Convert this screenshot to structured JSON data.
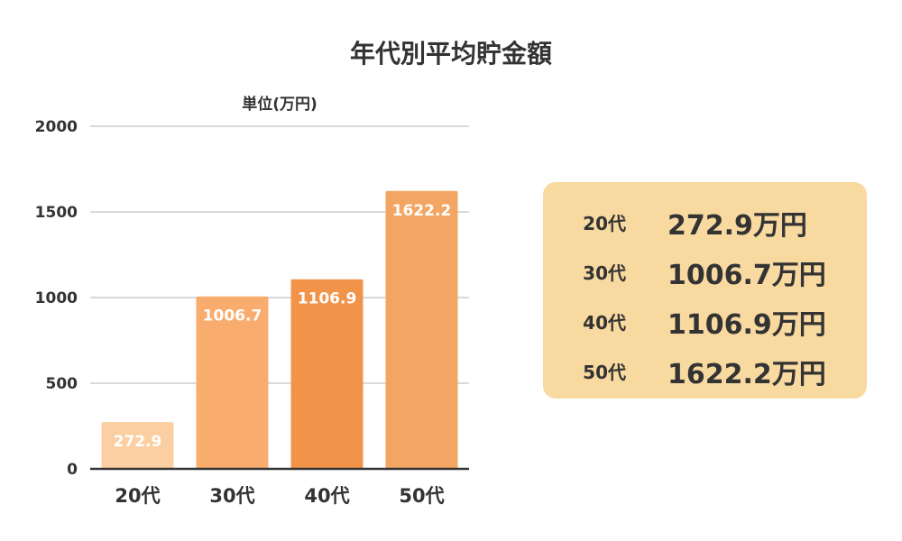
{
  "chart_data": {
    "type": "bar",
    "title": "年代別平均貯金額",
    "unit_label": "単位(万円)",
    "categories": [
      "20代",
      "30代",
      "40代",
      "50代"
    ],
    "values": [
      272.9,
      1006.7,
      1106.9,
      1622.2
    ],
    "data_labels": [
      "272.9",
      "1006.7",
      "1106.9",
      "1622.2"
    ],
    "ylim": [
      0,
      2000
    ],
    "y_ticks": [
      "0",
      "500",
      "1000",
      "1500",
      "2000"
    ],
    "grid": true,
    "bar_colors": [
      "#fbcfa2",
      "#f8ad6f",
      "#f1944a",
      "#f3a663"
    ],
    "grid_color": "#d9d9d9",
    "axis_color": "#333333"
  },
  "summary": {
    "background": "#f8d9a0",
    "rows": [
      {
        "age": "20代",
        "amount": "272.9万円"
      },
      {
        "age": "30代",
        "amount": "1006.7万円"
      },
      {
        "age": "40代",
        "amount": "1106.9万円"
      },
      {
        "age": "50代",
        "amount": "1622.2万円"
      }
    ]
  }
}
